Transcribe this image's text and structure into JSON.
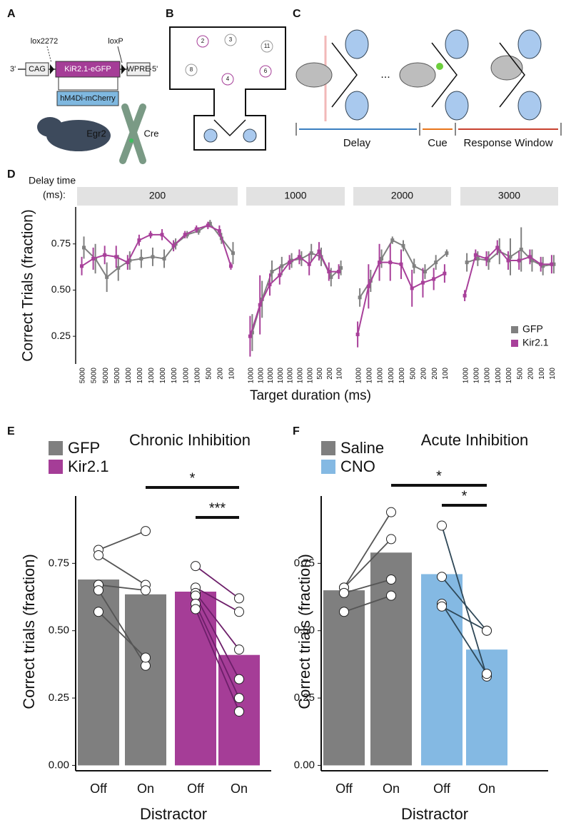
{
  "panel_labels": [
    "A",
    "B",
    "C",
    "D",
    "E",
    "F"
  ],
  "construct": {
    "left_site": "lox2272",
    "right_site": "loxP",
    "end_3": "3'",
    "promoter": "CAG",
    "gene": "KiR2.1-eGFP",
    "wpre": "WPRE",
    "end_5": "5'",
    "inverted": "hM4Di-mCherry",
    "chromosome_left": "Egr2",
    "chromosome_right": "Cre"
  },
  "arena": {
    "mouse_ids": [
      "2",
      "3",
      "11",
      "8",
      "4",
      "6"
    ]
  },
  "timeline": {
    "ellipsis": "...",
    "phases": [
      "Delay",
      "Cue",
      "Response Window"
    ]
  },
  "chart_data": [
    {
      "type": "line",
      "y_label": "Correct Trials (fraction)",
      "x_label": "Target duration (ms)",
      "facet_label": [
        "Delay time",
        "(ms):"
      ],
      "ylim": [
        0.1,
        0.95
      ],
      "yticks": [
        0.25,
        {
          "value": 0.5,
          "label": "0.50"
        },
        0.75
      ],
      "legend": "bottom-right",
      "series": [
        {
          "name": "GFP",
          "color": "#808080"
        },
        {
          "name": "Kir2.1",
          "color": "#a8409a"
        }
      ],
      "facets": [
        {
          "title": "200",
          "categories": [
            "5000",
            "5000",
            "5000",
            "5000",
            "1000",
            "1000",
            "1000",
            "1000",
            "1000",
            "1000",
            "1000",
            "500",
            "200",
            "100"
          ],
          "values": [
            [
              0.73,
              0.67,
              0.57,
              0.62,
              0.66,
              0.67,
              0.68,
              0.67,
              0.75,
              0.8,
              0.82,
              0.86,
              0.78,
              0.7
            ],
            [
              0.63,
              0.67,
              0.69,
              0.68,
              0.65,
              0.77,
              0.8,
              0.8,
              0.74,
              0.8,
              0.83,
              0.85,
              0.82,
              0.63
            ]
          ],
          "errors": [
            [
              0.06,
              0.08,
              0.08,
              0.07,
              0.05,
              0.05,
              0.05,
              0.05,
              0.03,
              0.02,
              0.02,
              0.02,
              0.03,
              0.06
            ],
            [
              0.05,
              0.06,
              0.05,
              0.06,
              0.04,
              0.03,
              0.02,
              0.03,
              0.03,
              0.02,
              0.02,
              0.02,
              0.03,
              0.02
            ]
          ]
        },
        {
          "title": "1000",
          "categories": [
            "1000",
            "1000",
            "1000",
            "1000",
            "1000",
            "1000",
            "1000",
            "500",
            "200",
            "100"
          ],
          "values": [
            [
              0.27,
              0.45,
              0.6,
              0.63,
              0.66,
              0.67,
              0.7,
              0.68,
              0.57,
              0.62
            ],
            [
              0.25,
              0.42,
              0.53,
              0.58,
              0.65,
              0.68,
              0.64,
              0.71,
              0.6,
              0.6
            ]
          ],
          "errors": [
            [
              0.1,
              0.1,
              0.06,
              0.05,
              0.04,
              0.04,
              0.05,
              0.05,
              0.05,
              0.04
            ],
            [
              0.11,
              0.16,
              0.06,
              0.05,
              0.04,
              0.04,
              0.06,
              0.05,
              0.05,
              0.04
            ]
          ]
        },
        {
          "title": "2000",
          "categories": [
            "1000",
            "1000",
            "1000",
            "1000",
            "1000",
            "500",
            "200",
            "200",
            "100"
          ],
          "values": [
            [
              0.46,
              0.55,
              0.67,
              0.77,
              0.74,
              0.63,
              0.6,
              0.65,
              0.7
            ],
            [
              0.26,
              0.52,
              0.65,
              0.65,
              0.64,
              0.51,
              0.54,
              0.56,
              0.59
            ]
          ],
          "errors": [
            [
              0.05,
              0.06,
              0.05,
              0.02,
              0.03,
              0.04,
              0.04,
              0.04,
              0.02
            ],
            [
              0.07,
              0.12,
              0.1,
              0.1,
              0.08,
              0.1,
              0.08,
              0.06,
              0.05
            ]
          ]
        },
        {
          "title": "3000",
          "categories": [
            "1000",
            "1000",
            "1000",
            "1000",
            "1000",
            "500",
            "200",
            "100",
            "100"
          ],
          "values": [
            [
              0.65,
              0.67,
              0.66,
              0.71,
              0.68,
              0.72,
              0.66,
              0.63,
              0.64
            ],
            [
              0.47,
              0.69,
              0.67,
              0.73,
              0.66,
              0.66,
              0.68,
              0.64,
              0.64
            ]
          ],
          "errors": [
            [
              0.05,
              0.04,
              0.05,
              0.07,
              0.1,
              0.12,
              0.06,
              0.05,
              0.05
            ],
            [
              0.03,
              0.03,
              0.04,
              0.04,
              0.05,
              0.05,
              0.04,
              0.04,
              0.05
            ]
          ]
        }
      ]
    },
    {
      "type": "bar",
      "title": "Chronic Inhibition",
      "y_label": "Correct trials (fraction)",
      "x_label": "Distractor",
      "ylim": [
        -0.02,
        1.0
      ],
      "yticks": [
        {
          "value": 0,
          "label": "0.00"
        },
        0.25,
        {
          "value": 0.5,
          "label": "0.50"
        },
        0.75
      ],
      "categories": [
        "Off",
        "On"
      ],
      "groups": [
        {
          "name": "GFP",
          "color": "#7f7f7f",
          "line_color": "#555555",
          "values": [
            0.69,
            0.635
          ],
          "points": [
            [
              0.8,
              0.78,
              0.67,
              0.65,
              0.57
            ],
            [
              0.87,
              0.67,
              0.65,
              0.37,
              0.4
            ]
          ]
        },
        {
          "name": "Kir2.1",
          "color": "#a53d97",
          "line_color": "#6d1f6a",
          "values": [
            0.645,
            0.41
          ],
          "points": [
            [
              0.74,
              0.66,
              0.64,
              0.63,
              0.6,
              0.58
            ],
            [
              0.62,
              0.57,
              0.43,
              0.32,
              0.25,
              0.2
            ]
          ]
        }
      ],
      "significance": [
        "*",
        "***"
      ]
    },
    {
      "type": "bar",
      "title": "Acute Inhibition",
      "y_label": "Correct trials (fraction)",
      "x_label": "Distractor",
      "ylim": [
        -0.02,
        1.0
      ],
      "yticks": [
        {
          "value": 0,
          "label": "0.00"
        },
        0.25,
        {
          "value": 0.5,
          "label": "0.50"
        },
        0.75
      ],
      "categories": [
        "Off",
        "On"
      ],
      "groups": [
        {
          "name": "Saline",
          "color": "#7f7f7f",
          "line_color": "#555555",
          "values": [
            0.65,
            0.79
          ],
          "points": [
            [
              0.66,
              0.66,
              0.64,
              0.57
            ],
            [
              0.94,
              0.84,
              0.69,
              0.63
            ]
          ]
        },
        {
          "name": "CNO",
          "color": "#84b9e3",
          "line_color": "#2f4858",
          "values": [
            0.71,
            0.43
          ],
          "points": [
            [
              0.89,
              0.7,
              0.6,
              0.59
            ],
            [
              0.33,
              0.5,
              0.34,
              0.5
            ]
          ]
        }
      ],
      "significance": [
        "*",
        "*"
      ]
    }
  ]
}
